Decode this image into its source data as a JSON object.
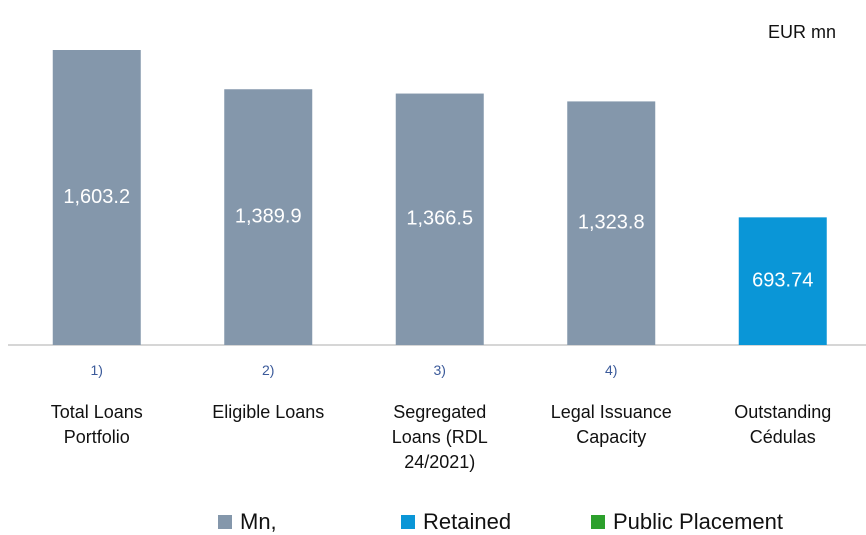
{
  "chart_data": {
    "type": "bar",
    "unit_label": "EUR mn",
    "categories": [
      "Total Loans Portfolio",
      "Eligible Loans",
      "Segregated Loans (RDL 24/2021)",
      "Legal Issuance Capacity",
      "Outstanding Cédulas"
    ],
    "notes": [
      "1)",
      "2)",
      "3)",
      "4)",
      null
    ],
    "series": [
      {
        "name": "Mn,",
        "color": "#8497ab",
        "values": [
          1603.2,
          1389.9,
          1366.5,
          1323.8,
          null
        ],
        "value_labels": [
          "1,603.2",
          "1,389.9",
          "1,366.5",
          "1,323.8",
          null
        ]
      },
      {
        "name": "Retained",
        "color": "#0a96d7",
        "values": [
          null,
          null,
          null,
          null,
          693.74
        ]
      },
      {
        "name": "Public Placement",
        "color": "#2ca02c",
        "values": [
          null,
          null,
          null,
          null,
          null
        ]
      }
    ],
    "legend": "bottom"
  }
}
